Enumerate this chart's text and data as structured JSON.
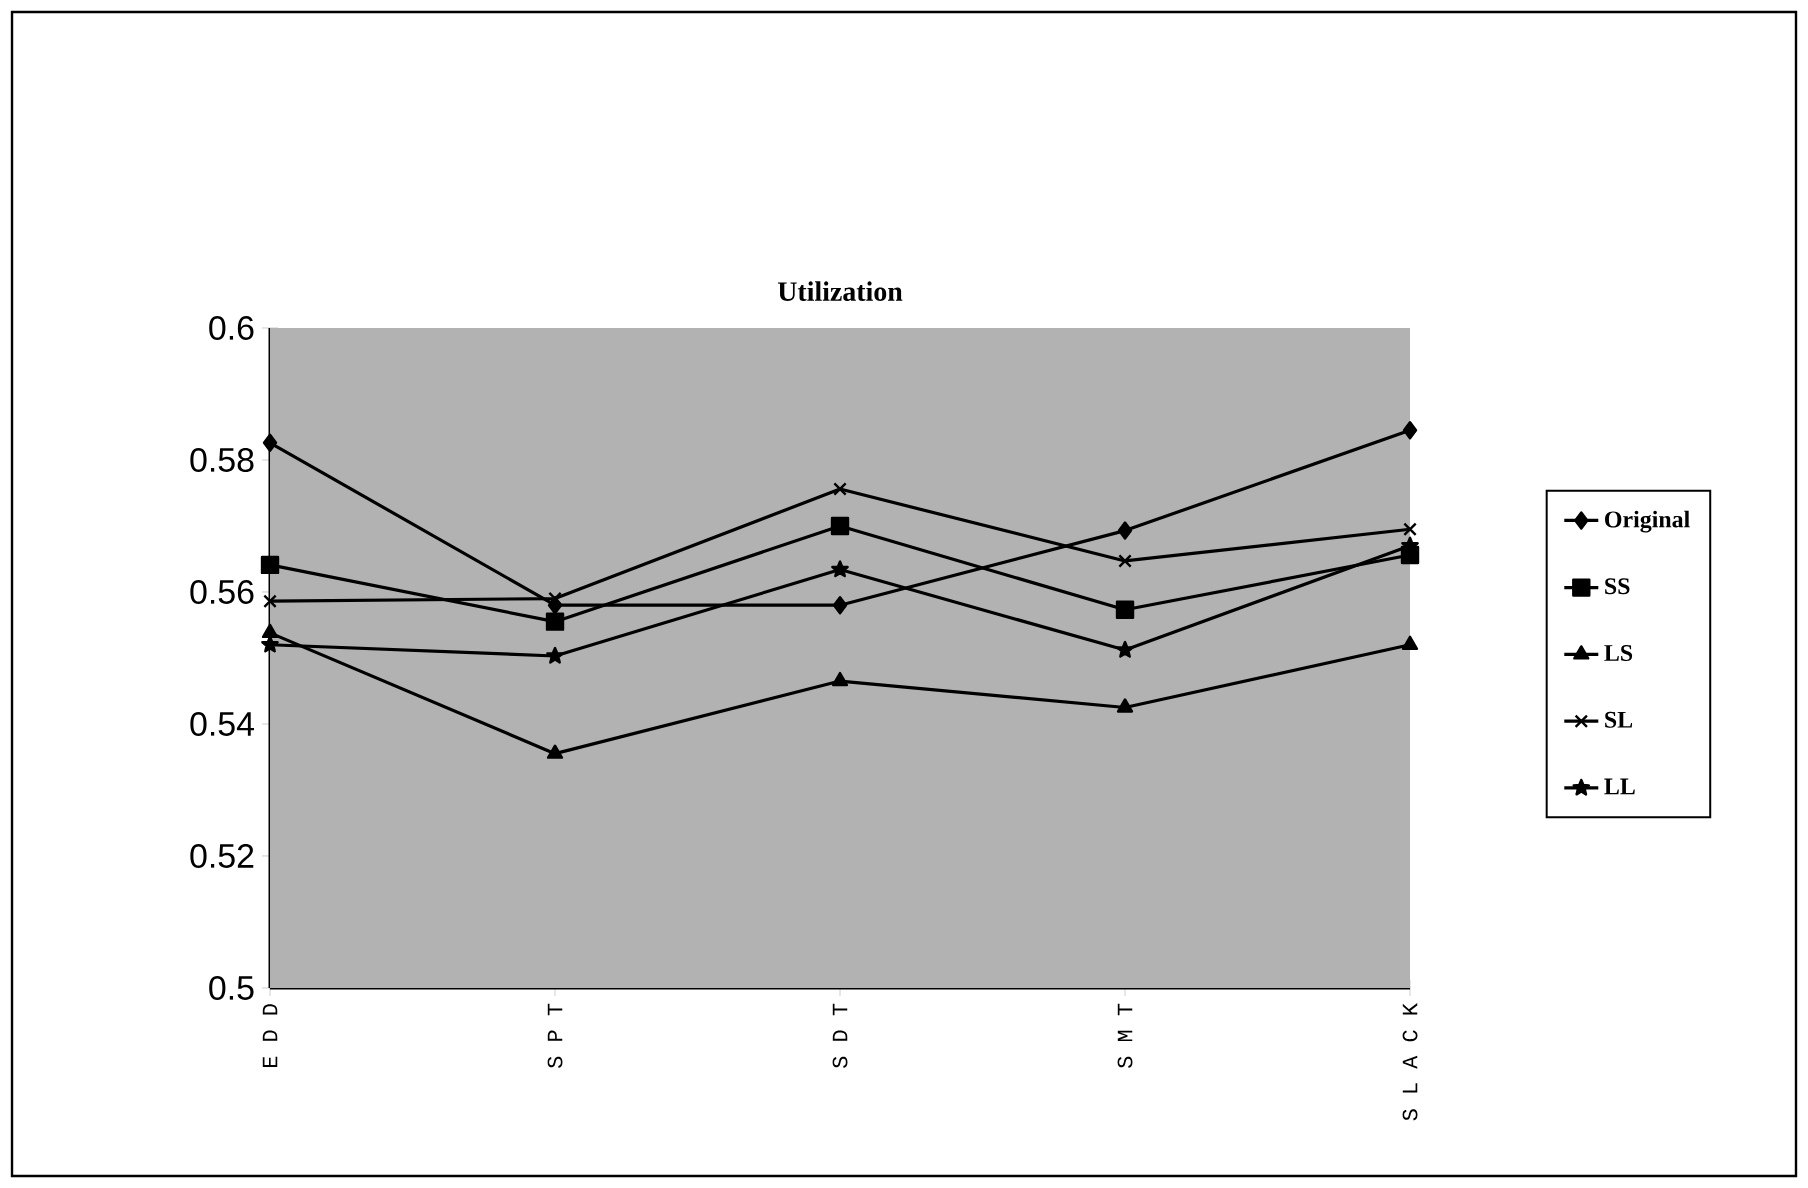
{
  "chart_data": {
    "type": "line",
    "title": "Utilization",
    "categories": [
      "E D D",
      "S P T",
      "S D T",
      "S M T",
      "S L A C K"
    ],
    "series": [
      {
        "name": "Original",
        "color": "#000000",
        "marker": "diamond",
        "values": [
          0.5826,
          0.558,
          0.558,
          0.5693,
          0.5845
        ]
      },
      {
        "name": "SS",
        "color": "#000000",
        "marker": "square",
        "values": [
          0.5641,
          0.5555,
          0.57,
          0.5573,
          0.5656
        ]
      },
      {
        "name": "LS",
        "color": "#000000",
        "marker": "triangle",
        "values": [
          0.5538,
          0.5355,
          0.5465,
          0.5425,
          0.552
        ]
      },
      {
        "name": "SL",
        "color": "#000000",
        "marker": "cross",
        "values": [
          0.5586,
          0.559,
          0.5756,
          0.5647,
          0.5695
        ]
      },
      {
        "name": "LL",
        "color": "#000000",
        "marker": "star",
        "values": [
          0.552,
          0.5503,
          0.5634,
          0.5512,
          0.567
        ]
      }
    ],
    "ylim": [
      0.5,
      0.6
    ],
    "yticks": [
      0.5,
      0.52,
      0.54,
      0.56,
      0.58,
      0.6
    ],
    "grid": false,
    "legend": "right",
    "line_style": "solid"
  }
}
